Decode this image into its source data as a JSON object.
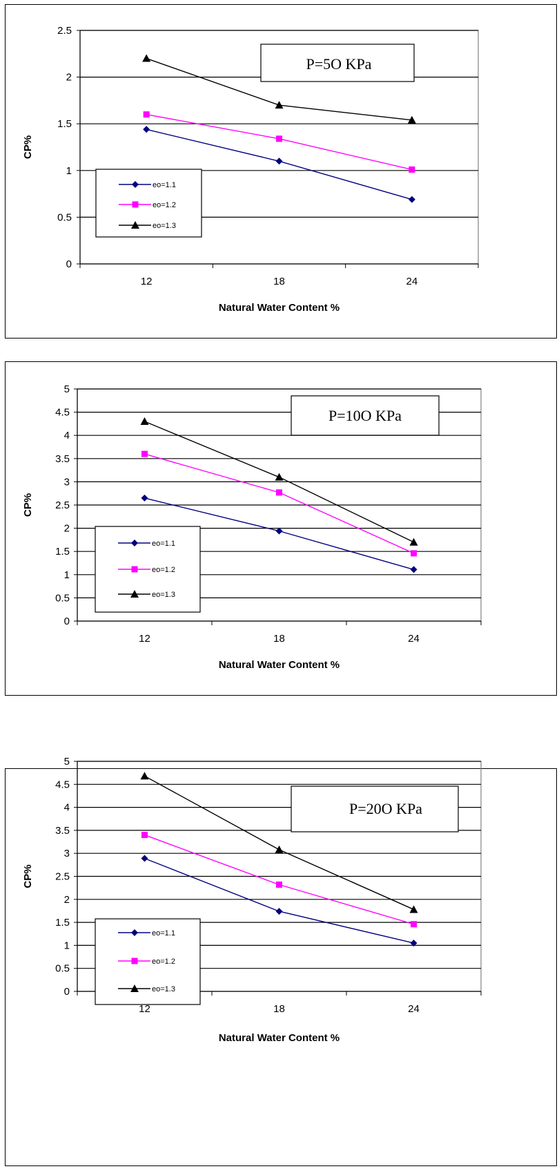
{
  "chart_data": [
    {
      "type": "line",
      "x": [
        "12",
        "18",
        "24"
      ],
      "xlabel": "Natural Water Content %",
      "ylabel": "CP%",
      "ylim": [
        0,
        2.5
      ],
      "yticks": [
        "0",
        "0.5",
        "1",
        "1.5",
        "2",
        "2.5"
      ],
      "grid": true,
      "annotation": "P=5O KPa",
      "legend_position": "lower-left",
      "series": [
        {
          "name": "eo=1.1",
          "values": [
            1.44,
            1.1,
            0.69
          ],
          "color": "#000080",
          "marker": "diamond"
        },
        {
          "name": "eo=1.2",
          "values": [
            1.6,
            1.34,
            1.01
          ],
          "color": "#FF00FF",
          "marker": "square"
        },
        {
          "name": "eo=1.3",
          "values": [
            2.2,
            1.7,
            1.54
          ],
          "color": "#000000",
          "marker": "triangle"
        }
      ]
    },
    {
      "type": "line",
      "x": [
        "12",
        "18",
        "24"
      ],
      "xlabel": "Natural Water Content %",
      "ylabel": "CP%",
      "ylim": [
        0,
        5
      ],
      "yticks": [
        "0",
        "0.5",
        "1",
        "1.5",
        "2",
        "2.5",
        "3",
        "3.5",
        "4",
        "4.5",
        "5"
      ],
      "grid": true,
      "annotation": "P=10O KPa",
      "legend_position": "lower-left",
      "series": [
        {
          "name": "eo=1.1",
          "values": [
            2.65,
            1.94,
            1.11
          ],
          "color": "#000080",
          "marker": "diamond"
        },
        {
          "name": "eo=1.2",
          "values": [
            3.6,
            2.77,
            1.46
          ],
          "color": "#FF00FF",
          "marker": "square"
        },
        {
          "name": "eo=1.3",
          "values": [
            4.3,
            3.1,
            1.7
          ],
          "color": "#000000",
          "marker": "triangle"
        }
      ]
    },
    {
      "type": "line",
      "x": [
        "12",
        "18",
        "24"
      ],
      "xlabel": "Natural Water Content %",
      "ylabel": "CP%",
      "ylim": [
        0,
        5
      ],
      "yticks": [
        "0",
        "0.5",
        "1",
        "1.5",
        "2",
        "2.5",
        "3",
        "3.5",
        "4",
        "4.5",
        "5"
      ],
      "grid": true,
      "annotation": "P=20O KPa",
      "legend_position": "lower-left",
      "series": [
        {
          "name": "eo=1.1",
          "values": [
            2.89,
            1.74,
            1.05
          ],
          "color": "#000080",
          "marker": "diamond"
        },
        {
          "name": "eo=1.2",
          "values": [
            3.4,
            2.32,
            1.46
          ],
          "color": "#FF00FF",
          "marker": "square"
        },
        {
          "name": "eo=1.3",
          "values": [
            4.68,
            3.08,
            1.78
          ],
          "color": "#000000",
          "marker": "triangle"
        }
      ]
    }
  ]
}
